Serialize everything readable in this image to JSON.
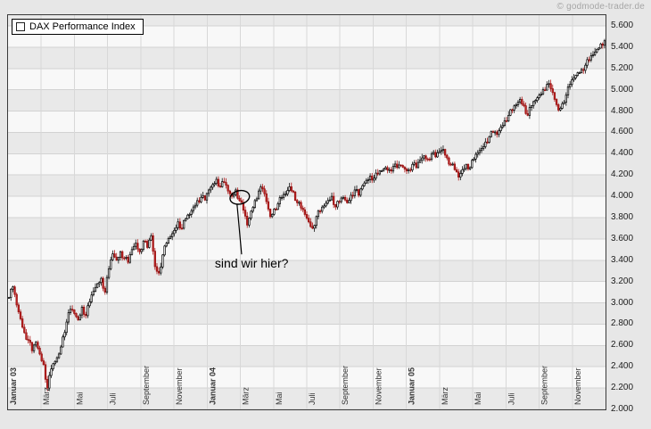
{
  "page": {
    "copyright": "© godmode-trader.de"
  },
  "legend": {
    "label": "DAX Performance Index"
  },
  "chart_data": {
    "type": "candlestick",
    "title": "DAX Performance Index",
    "ylim": [
      2000,
      5600
    ],
    "y_tick_labels": [
      "2.000",
      "2.200",
      "2.400",
      "2.600",
      "2.800",
      "3.000",
      "3.200",
      "3.400",
      "3.600",
      "3.800",
      "4.000",
      "4.200",
      "4.400",
      "4.600",
      "4.800",
      "5.000",
      "5.200",
      "5.400",
      "5.600"
    ],
    "months_total": 36,
    "x_labels": [
      "Januar 03",
      "März",
      "Mai",
      "Juli",
      "September",
      "November",
      "Januar 04",
      "März",
      "Mai",
      "Juli",
      "September",
      "November",
      "Januar 05",
      "März",
      "Mai",
      "Juli",
      "September",
      "November"
    ],
    "x_label_months": [
      0,
      2,
      4,
      6,
      8,
      10,
      12,
      14,
      16,
      18,
      20,
      22,
      24,
      26,
      28,
      30,
      32,
      34
    ],
    "weekly_closes": [
      3050,
      3150,
      2980,
      2850,
      2720,
      2650,
      2550,
      2630,
      2520,
      2420,
      2200,
      2380,
      2450,
      2520,
      2680,
      2820,
      2940,
      2900,
      2840,
      2960,
      2880,
      3010,
      3110,
      3180,
      3230,
      3100,
      3320,
      3460,
      3400,
      3480,
      3420,
      3380,
      3500,
      3560,
      3480,
      3580,
      3520,
      3630,
      3340,
      3280,
      3450,
      3560,
      3620,
      3680,
      3760,
      3700,
      3790,
      3830,
      3900,
      3960,
      3990,
      3965,
      4060,
      4110,
      4160,
      4090,
      4130,
      4050,
      4000,
      4060,
      3960,
      3870,
      3730,
      3860,
      3960,
      4050,
      4070,
      3950,
      3810,
      3880,
      3930,
      3990,
      4020,
      4090,
      4040,
      3940,
      3890,
      3830,
      3760,
      3700,
      3810,
      3860,
      3910,
      3960,
      4000,
      3900,
      3950,
      3990,
      3940,
      4010,
      4060,
      4010,
      4100,
      4150,
      4190,
      4170,
      4210,
      4240,
      4270,
      4250,
      4280,
      4270,
      4290,
      4256,
      4250,
      4300,
      4270,
      4340,
      4380,
      4350,
      4400,
      4370,
      4420,
      4440,
      4360,
      4300,
      4250,
      4180,
      4250,
      4300,
      4270,
      4350,
      4410,
      4450,
      4510,
      4560,
      4600,
      4580,
      4650,
      4710,
      4760,
      4810,
      4860,
      4910,
      4850,
      4760,
      4850,
      4900,
      4950,
      5000,
      5050,
      5010,
      4910,
      4810,
      4870,
      4950,
      5050,
      5110,
      5160,
      5190,
      5230,
      5280,
      5330,
      5380,
      5430,
      5460
    ],
    "colors": {
      "up": "#ffffff",
      "down": "#c62222",
      "outline": "#000000",
      "grid": "#d2d2d2"
    },
    "annotation": {
      "text": "sind wir hier?",
      "anchor_week": 60,
      "anchor_value": 3990,
      "text_week": 54,
      "text_value": 3330
    }
  }
}
